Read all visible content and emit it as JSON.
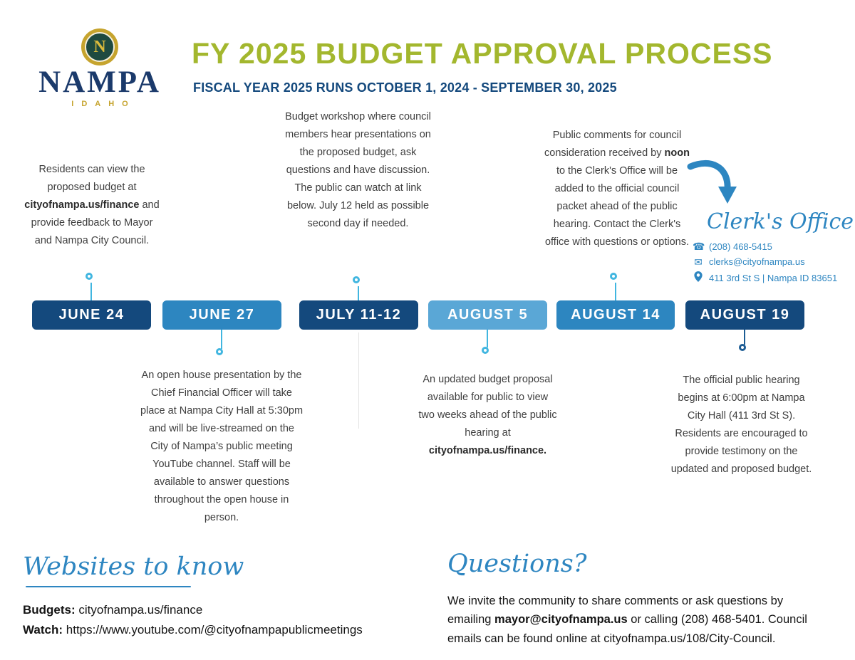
{
  "header": {
    "logo": {
      "monogram": "N",
      "name": "NAMPA",
      "state": "IDAHO"
    },
    "title": "FY 2025 BUDGET APPROVAL PROCESS",
    "subtitle": "FISCAL YEAR 2025 RUNS OCTOBER 1, 2024 - SEPTEMBER 30, 2025"
  },
  "colors": {
    "title_green": "#a3b72e",
    "dark_blue": "#14497d",
    "medium_blue": "#2d86c0",
    "light_blue": "#5aa7d6",
    "connector_cyan": "#41b6e0",
    "script_blue": "#2e86c1",
    "body_text": "#3e3e3e",
    "logo_navy": "#1b3a6b",
    "logo_gold": "#c6a42e"
  },
  "timeline": {
    "events": [
      {
        "date": "JUNE 24",
        "badge_color": "#14497d",
        "description": [
          {
            "t": "Residents can view the proposed budget at "
          },
          {
            "t": "cityofnampa.us/finance",
            "b": true
          },
          {
            "t": " and provide feedback to Mayor and Nampa City Council."
          }
        ]
      },
      {
        "date": "JUNE 27",
        "badge_color": "#2d86c0",
        "description": [
          {
            "t": "An open house presentation by the Chief Financial Officer will take place at Nampa City Hall at 5:30pm and will be live-streamed on the City of Nampa’s public meeting YouTube channel. Staff will be available to answer questions throughout the open house in person."
          }
        ]
      },
      {
        "date": "JULY 11-12",
        "badge_color": "#14497d",
        "description": [
          {
            "t": "Budget workshop where council members hear presentations on the proposed budget, ask questions and have discussion. The public can watch at link below. July 12 held as possible second day if needed."
          }
        ]
      },
      {
        "date": "AUGUST 5",
        "badge_color": "#5aa7d6",
        "description": [
          {
            "t": "An updated budget proposal available for public to view two weeks ahead of the public hearing at "
          },
          {
            "t": "cityofnampa.us/finance.",
            "b": true
          }
        ]
      },
      {
        "date": "AUGUST 14",
        "badge_color": "#2d86c0",
        "description": [
          {
            "t": "Public comments for council consideration received by "
          },
          {
            "t": "noon",
            "b": true
          },
          {
            "t": " to the Clerk's Office will be added to the official council packet ahead of the public hearing. Contact the Clerk's office with questions or options."
          }
        ]
      },
      {
        "date": "AUGUST 19",
        "badge_color": "#14497d",
        "description": [
          {
            "t": "The official public hearing begins at 6:00pm at Nampa City Hall (411 3rd St S). Residents are encouraged to provide testimony on the updated and proposed budget."
          }
        ]
      }
    ]
  },
  "clerks_office": {
    "title": "Clerk's Office",
    "phone": "(208) 468-5415",
    "email": "clerks@cityofnampa.us",
    "address": "411 3rd St S | Nampa ID 83651"
  },
  "icons": {
    "phone_glyph": "☎",
    "email_glyph": "✉"
  },
  "footer": {
    "websites": {
      "heading": "Websites to know",
      "lines": [
        [
          {
            "t": "Budgets: ",
            "b": true
          },
          {
            "t": "cityofnampa.us/finance"
          }
        ],
        [
          {
            "t": "Watch: ",
            "b": true
          },
          {
            "t": "https://www.youtube.com/@cityofnampapublicmeetings"
          }
        ]
      ]
    },
    "questions": {
      "heading": "Questions?",
      "body": [
        {
          "t": "We invite the community to share comments or ask questions by emailing "
        },
        {
          "t": "mayor@cityofnampa.us",
          "b": true
        },
        {
          "t": " or calling (208) 468-5401. Council emails can be found online at cityofnampa.us/108/City-Council."
        }
      ]
    }
  }
}
